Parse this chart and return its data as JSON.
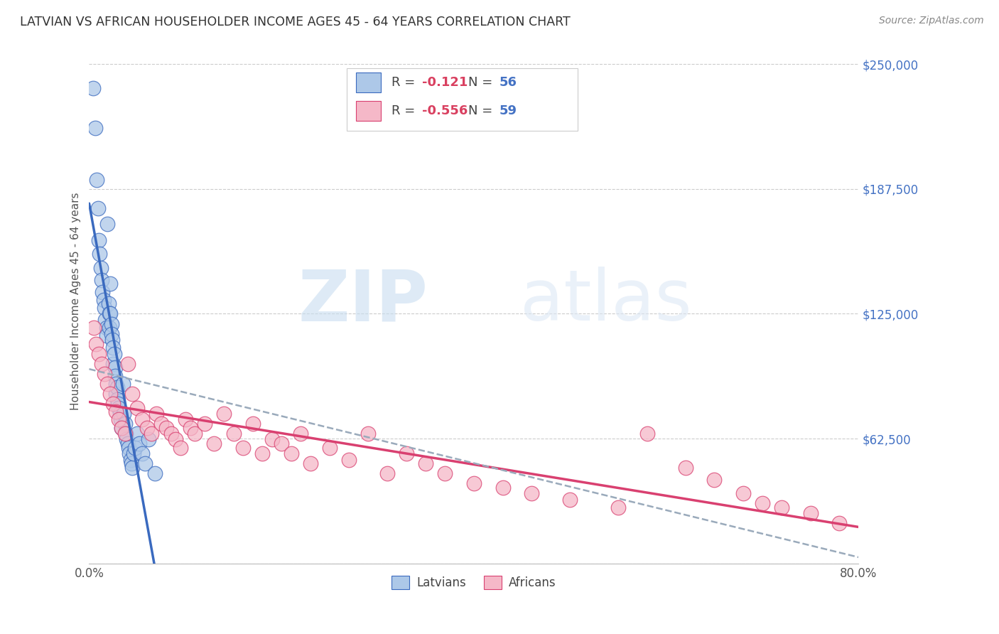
{
  "title": "LATVIAN VS AFRICAN HOUSEHOLDER INCOME AGES 45 - 64 YEARS CORRELATION CHART",
  "source": "Source: ZipAtlas.com",
  "ylabel": "Householder Income Ages 45 - 64 years",
  "xlim": [
    0.0,
    0.8
  ],
  "ylim": [
    0,
    262500
  ],
  "yticks": [
    0,
    62500,
    125000,
    187500,
    250000
  ],
  "ytick_labels": [
    "",
    "$62,500",
    "$125,000",
    "$187,500",
    "$250,000"
  ],
  "xticks": [
    0.0,
    0.1,
    0.2,
    0.3,
    0.4,
    0.5,
    0.6,
    0.7,
    0.8
  ],
  "xtick_labels": [
    "0.0%",
    "",
    "",
    "",
    "",
    "",
    "",
    "",
    "80.0%"
  ],
  "latvian_color": "#adc8e8",
  "african_color": "#f5b8c8",
  "latvian_R": -0.121,
  "latvian_N": 56,
  "african_R": -0.556,
  "african_N": 59,
  "trend_latvian_color": "#3a6abf",
  "trend_african_color": "#d94070",
  "trend_combined_color": "#9aaabb",
  "watermark_zip": "ZIP",
  "watermark_atlas": "atlas",
  "legend_label_latvians": "Latvians",
  "legend_label_africans": "Africans",
  "latvian_x": [
    0.004,
    0.006,
    0.008,
    0.009,
    0.01,
    0.011,
    0.012,
    0.013,
    0.014,
    0.015,
    0.016,
    0.017,
    0.018,
    0.018,
    0.019,
    0.02,
    0.021,
    0.021,
    0.022,
    0.022,
    0.023,
    0.023,
    0.024,
    0.025,
    0.025,
    0.026,
    0.027,
    0.027,
    0.028,
    0.028,
    0.029,
    0.029,
    0.03,
    0.031,
    0.032,
    0.033,
    0.034,
    0.035,
    0.036,
    0.037,
    0.038,
    0.039,
    0.04,
    0.041,
    0.042,
    0.043,
    0.044,
    0.045,
    0.046,
    0.048,
    0.05,
    0.052,
    0.055,
    0.058,
    0.062,
    0.068
  ],
  "latvian_y": [
    238000,
    218000,
    192000,
    178000,
    162000,
    155000,
    148000,
    142000,
    136000,
    132000,
    128000,
    122000,
    118000,
    114000,
    170000,
    130000,
    125000,
    118000,
    140000,
    125000,
    120000,
    115000,
    112000,
    108000,
    100000,
    105000,
    98000,
    94000,
    90000,
    85000,
    88000,
    82000,
    80000,
    78000,
    75000,
    72000,
    68000,
    90000,
    75000,
    70000,
    65000,
    62000,
    60000,
    58000,
    55000,
    52000,
    50000,
    48000,
    55000,
    58000,
    65000,
    60000,
    55000,
    50000,
    62000,
    45000
  ],
  "african_x": [
    0.005,
    0.007,
    0.01,
    0.013,
    0.016,
    0.019,
    0.022,
    0.025,
    0.028,
    0.031,
    0.034,
    0.037,
    0.04,
    0.045,
    0.05,
    0.055,
    0.06,
    0.065,
    0.07,
    0.075,
    0.08,
    0.085,
    0.09,
    0.095,
    0.1,
    0.105,
    0.11,
    0.12,
    0.13,
    0.14,
    0.15,
    0.16,
    0.17,
    0.18,
    0.19,
    0.2,
    0.21,
    0.22,
    0.23,
    0.25,
    0.27,
    0.29,
    0.31,
    0.33,
    0.35,
    0.37,
    0.4,
    0.43,
    0.46,
    0.5,
    0.55,
    0.58,
    0.62,
    0.65,
    0.68,
    0.7,
    0.72,
    0.75,
    0.78
  ],
  "african_y": [
    118000,
    110000,
    105000,
    100000,
    95000,
    90000,
    85000,
    80000,
    76000,
    72000,
    68000,
    65000,
    100000,
    85000,
    78000,
    72000,
    68000,
    65000,
    75000,
    70000,
    68000,
    65000,
    62000,
    58000,
    72000,
    68000,
    65000,
    70000,
    60000,
    75000,
    65000,
    58000,
    70000,
    55000,
    62000,
    60000,
    55000,
    65000,
    50000,
    58000,
    52000,
    65000,
    45000,
    55000,
    50000,
    45000,
    40000,
    38000,
    35000,
    32000,
    28000,
    65000,
    48000,
    42000,
    35000,
    30000,
    28000,
    25000,
    20000
  ]
}
